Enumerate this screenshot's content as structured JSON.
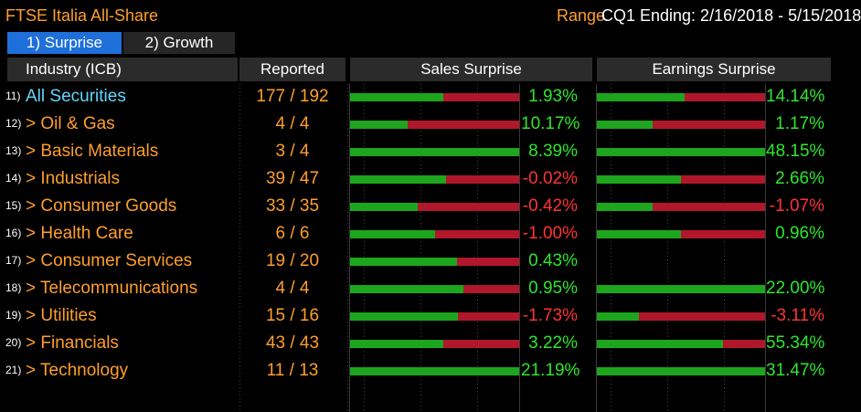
{
  "header": {
    "title": "FTSE Italia All-Share",
    "range_label": "Range",
    "range_value": "CQ1 Ending: 2/16/2018 - 5/15/2018"
  },
  "tabs": [
    {
      "label": "1) Surprise",
      "active": true
    },
    {
      "label": "2) Growth",
      "active": false
    }
  ],
  "columns": {
    "industry": "Industry (ICB)",
    "reported": "Reported",
    "sales": "Sales Surprise",
    "earnings": "Earnings Surprise"
  },
  "colors": {
    "accent": "#ff9e2c",
    "positive": "#2ee62e",
    "negative": "#ff3333",
    "bar_green": "#1ea51e",
    "bar_red": "#b0172b",
    "tab_active": "#1e6fd9"
  },
  "rows": [
    {
      "num": "11)",
      "name": "All Securities",
      "reported": "177 / 192",
      "sales_pct": "1.93%",
      "sales_green": 0.55,
      "earn_pct": "14.14%",
      "earn_green": 0.52
    },
    {
      "num": "12)",
      "name": "> Oil & Gas",
      "reported": "4 / 4",
      "sales_pct": "10.17%",
      "sales_green": 0.34,
      "earn_pct": "1.17%",
      "earn_green": 0.33
    },
    {
      "num": "13)",
      "name": "> Basic Materials",
      "reported": "3 / 4",
      "sales_pct": "8.39%",
      "sales_green": 1.0,
      "earn_pct": "48.15%",
      "earn_green": 1.0
    },
    {
      "num": "14)",
      "name": "> Industrials",
      "reported": "39 / 47",
      "sales_pct": "-0.02%",
      "sales_green": 0.57,
      "earn_pct": "2.66%",
      "earn_green": 0.5
    },
    {
      "num": "15)",
      "name": "> Consumer Goods",
      "reported": "33 / 35",
      "sales_pct": "-0.42%",
      "sales_green": 0.4,
      "earn_pct": "-1.07%",
      "earn_green": 0.33
    },
    {
      "num": "16)",
      "name": "> Health Care",
      "reported": "6 / 6",
      "sales_pct": "-1.00%",
      "sales_green": 0.5,
      "earn_pct": "0.96%",
      "earn_green": 0.5
    },
    {
      "num": "17)",
      "name": "> Consumer Services",
      "reported": "19 / 20",
      "sales_pct": "0.43%",
      "sales_green": 0.63,
      "earn_pct": null,
      "earn_green": null
    },
    {
      "num": "18)",
      "name": "> Telecommunications",
      "reported": "4 / 4",
      "sales_pct": "0.95%",
      "sales_green": 0.67,
      "earn_pct": "22.00%",
      "earn_green": 1.0
    },
    {
      "num": "19)",
      "name": "> Utilities",
      "reported": "15 / 16",
      "sales_pct": "-1.73%",
      "sales_green": 0.64,
      "earn_pct": "-3.11%",
      "earn_green": 0.25
    },
    {
      "num": "20)",
      "name": "> Financials",
      "reported": "43 / 43",
      "sales_pct": "3.22%",
      "sales_green": 0.55,
      "earn_pct": "55.34%",
      "earn_green": 0.75
    },
    {
      "num": "21)",
      "name": "> Technology",
      "reported": "11 / 13",
      "sales_pct": "21.19%",
      "sales_green": 1.0,
      "earn_pct": "31.47%",
      "earn_green": 1.0
    }
  ]
}
